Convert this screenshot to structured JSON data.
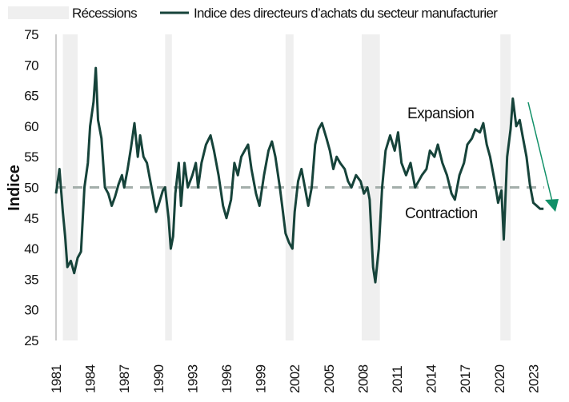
{
  "chart_data": {
    "type": "line",
    "title": "",
    "xlabel": "",
    "ylabel": "Indice",
    "xlim": [
      1981,
      2024
    ],
    "ylim": [
      25,
      75
    ],
    "yticks": [
      25,
      30,
      35,
      40,
      45,
      50,
      55,
      60,
      65,
      70,
      75
    ],
    "xticks": [
      1981,
      1984,
      1987,
      1990,
      1993,
      1996,
      1999,
      2002,
      2005,
      2008,
      2011,
      2014,
      2017,
      2020,
      2023
    ],
    "legend": {
      "placement": "top",
      "entries": [
        "Récessions",
        "Indice des directeurs d’achats du secteur manufacturier"
      ]
    },
    "recessions": [
      [
        1981.6,
        1982.9
      ],
      [
        1990.6,
        1991.2
      ],
      [
        2001.2,
        2001.9
      ],
      [
        2007.9,
        2009.5
      ],
      [
        2020.1,
        2021.0
      ]
    ],
    "reference_line": 50,
    "annotations": {
      "expansion": "Expansion",
      "contraction": "Contraction"
    },
    "colors": {
      "line": "#16433a",
      "recession": "#efefef",
      "reference": "#a3aeaa",
      "arrow": "#119068"
    },
    "series": [
      {
        "name": "Indice des directeurs d’achats du secteur manufacturier",
        "x": [
          1981.0,
          1981.3,
          1981.6,
          1981.8,
          1982.0,
          1982.3,
          1982.6,
          1982.9,
          1983.2,
          1983.5,
          1983.8,
          1984.0,
          1984.3,
          1984.5,
          1984.7,
          1985.0,
          1985.3,
          1985.6,
          1985.9,
          1986.2,
          1986.5,
          1986.8,
          1987.0,
          1987.3,
          1987.6,
          1987.9,
          1988.2,
          1988.4,
          1988.7,
          1989.0,
          1989.4,
          1989.8,
          1990.0,
          1990.4,
          1990.6,
          1990.9,
          1991.1,
          1991.3,
          1991.5,
          1991.8,
          1992.0,
          1992.3,
          1992.6,
          1993.0,
          1993.3,
          1993.5,
          1993.8,
          1994.2,
          1994.6,
          1994.9,
          1995.3,
          1995.7,
          1996.0,
          1996.4,
          1996.7,
          1997.0,
          1997.3,
          1997.6,
          1997.9,
          1998.2,
          1998.6,
          1998.9,
          1999.3,
          1999.7,
          2000.0,
          2000.3,
          2000.7,
          2000.9,
          2001.2,
          2001.5,
          2001.8,
          2002.0,
          2002.3,
          2002.6,
          2002.9,
          2003.2,
          2003.5,
          2003.8,
          2004.1,
          2004.4,
          2004.8,
          2005.1,
          2005.4,
          2005.7,
          2006.0,
          2006.4,
          2006.7,
          2007.0,
          2007.4,
          2007.8,
          2008.1,
          2008.4,
          2008.6,
          2008.9,
          2009.1,
          2009.4,
          2009.7,
          2010.0,
          2010.4,
          2010.8,
          2011.1,
          2011.4,
          2011.8,
          2012.2,
          2012.6,
          2012.9,
          2013.2,
          2013.6,
          2013.9,
          2014.3,
          2014.6,
          2015.0,
          2015.4,
          2015.8,
          2016.1,
          2016.5,
          2016.9,
          2017.2,
          2017.6,
          2017.9,
          2018.3,
          2018.6,
          2018.9,
          2019.2,
          2019.6,
          2019.9,
          2020.2,
          2020.4,
          2020.7,
          2021.0,
          2021.2,
          2021.5,
          2021.8,
          2022.1,
          2022.4,
          2022.7,
          2023.0,
          2023.3,
          2023.6,
          2023.9
        ],
        "values": [
          49,
          53,
          46,
          42,
          37,
          38,
          36,
          38.5,
          39.5,
          50,
          54,
          60,
          64,
          69.5,
          61,
          58,
          50,
          49,
          47,
          48.5,
          50.5,
          52,
          50,
          53,
          56.5,
          60.5,
          55,
          58.5,
          55,
          54,
          50,
          46,
          47,
          49.5,
          50,
          45,
          40,
          42,
          49,
          54,
          47,
          54,
          50,
          52,
          54,
          50,
          54,
          57,
          58.5,
          56,
          52,
          47,
          45,
          48,
          54,
          52,
          55,
          56,
          57,
          53,
          49,
          47,
          52,
          56,
          57.5,
          55,
          50,
          47,
          42.5,
          41,
          40,
          46,
          51,
          53,
          50,
          47,
          50,
          57,
          59.5,
          60.5,
          58,
          56,
          53,
          55,
          54,
          53,
          51,
          50,
          52,
          51,
          49,
          50,
          48,
          37,
          34.5,
          40,
          50,
          56,
          58.5,
          56,
          59,
          54,
          52,
          54,
          50,
          51,
          52,
          53,
          56,
          55,
          57,
          54,
          52,
          49,
          48,
          52,
          54,
          57,
          58,
          59.5,
          59,
          60.5,
          57,
          55,
          51,
          47.5,
          49.5,
          41.5,
          55,
          59.5,
          64.5,
          60,
          61,
          58,
          55,
          50.5,
          47.5,
          47,
          46.5,
          46.5
        ]
      }
    ]
  }
}
